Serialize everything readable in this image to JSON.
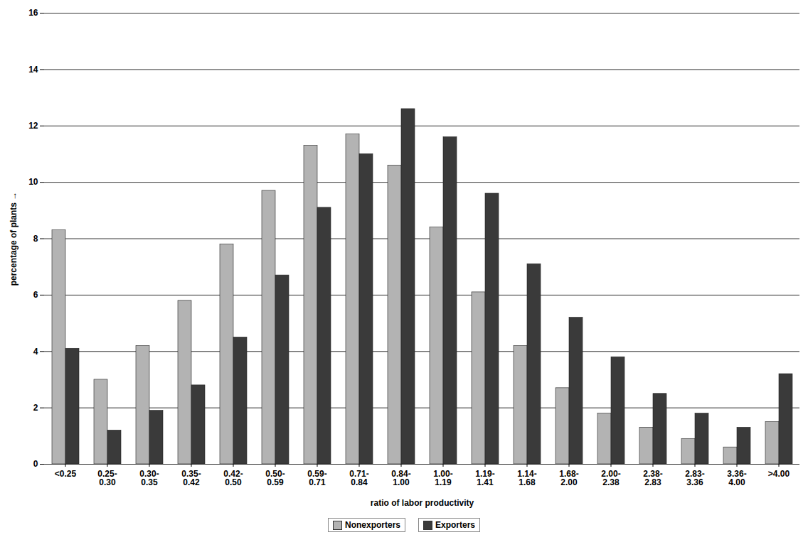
{
  "chart_data": {
    "type": "bar",
    "categories": [
      "<0.25",
      "0.25-0.30",
      "0.30-0.35",
      "0.35-0.42",
      "0.42-0.50",
      "0.50-0.59",
      "0.59-0.71",
      "0.71-0.84",
      "0.84-1.00",
      "1.00-1.19",
      "1.19-1.41",
      "1.14-1.68",
      "1.68-2.00",
      "2.00-2.38",
      "2.38-2.83",
      "2.83-3.36",
      "3.36-4.00",
      ">4.00"
    ],
    "series": [
      {
        "name": "Nonexporters",
        "color": "#b3b3b3",
        "values": [
          8.3,
          3.0,
          4.2,
          5.8,
          7.8,
          9.7,
          11.3,
          11.7,
          10.6,
          8.4,
          6.1,
          4.2,
          2.7,
          1.8,
          1.3,
          0.9,
          0.6,
          1.5
        ]
      },
      {
        "name": "Exporters",
        "color": "#3a3a3a",
        "values": [
          4.1,
          1.2,
          1.9,
          2.8,
          4.5,
          6.7,
          9.1,
          11.0,
          12.6,
          11.6,
          9.6,
          7.1,
          5.2,
          3.8,
          2.5,
          1.8,
          1.3,
          3.2
        ]
      }
    ],
    "x_label": "ratio of labor productivity",
    "y_label": "percentage of plants",
    "ylim": [
      0,
      16
    ],
    "yticks": [
      0,
      2,
      4,
      6,
      8,
      10,
      12,
      14,
      16
    ],
    "grid": true,
    "legend": "bottom"
  }
}
